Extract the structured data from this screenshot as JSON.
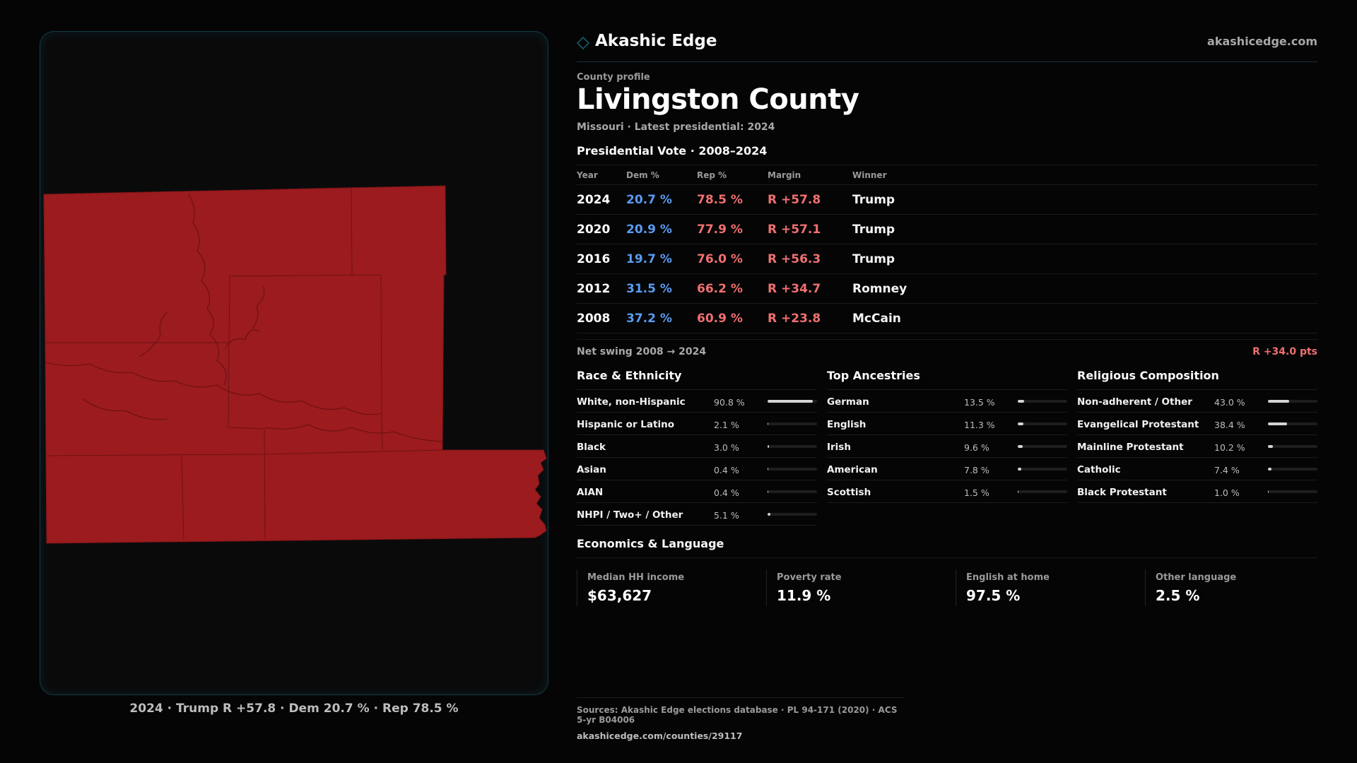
{
  "brand": {
    "name": "Akashic Edge",
    "url": "akashicedge.com",
    "icon": "diamond-logo-icon",
    "accent": "#1a5a6a"
  },
  "map": {
    "fill_color": "#9b1b1e",
    "caption": "2024 · Trump R +57.8 · Dem 20.7 % · Rep 78.5 %"
  },
  "profile": {
    "eyebrow": "County profile",
    "title": "Livingston County",
    "subtitle": "Missouri · Latest presidential: 2024"
  },
  "presidential": {
    "title": "Presidential Vote · 2008–2024",
    "headers": [
      "Year",
      "Dem %",
      "Rep %",
      "Margin",
      "Winner"
    ],
    "rows": [
      {
        "year": "2024",
        "dem": "20.7 %",
        "rep": "78.5 %",
        "margin": "R +57.8",
        "winner": "Trump"
      },
      {
        "year": "2020",
        "dem": "20.9 %",
        "rep": "77.9 %",
        "margin": "R +57.1",
        "winner": "Trump"
      },
      {
        "year": "2016",
        "dem": "19.7 %",
        "rep": "76.0 %",
        "margin": "R +56.3",
        "winner": "Trump"
      },
      {
        "year": "2012",
        "dem": "31.5 %",
        "rep": "66.2 %",
        "margin": "R +34.7",
        "winner": "Romney"
      },
      {
        "year": "2008",
        "dem": "37.2 %",
        "rep": "60.9 %",
        "margin": "R +23.8",
        "winner": "McCain"
      }
    ],
    "dem_color": "#5b9bf0",
    "rep_color": "#f07070"
  },
  "swing": {
    "label": "Net swing 2008 → 2024",
    "value": "R +34.0 pts"
  },
  "race": {
    "title": "Race & Ethnicity",
    "items": [
      {
        "label": "White, non-Hispanic",
        "value": "90.8 %",
        "pct": 90.8
      },
      {
        "label": "Hispanic or Latino",
        "value": "2.1 %",
        "pct": 2.1
      },
      {
        "label": "Black",
        "value": "3.0 %",
        "pct": 3.0
      },
      {
        "label": "Asian",
        "value": "0.4 %",
        "pct": 0.4
      },
      {
        "label": "AIAN",
        "value": "0.4 %",
        "pct": 0.4
      },
      {
        "label": "NHPI / Two+ / Other",
        "value": "5.1 %",
        "pct": 5.1
      }
    ]
  },
  "ancestry": {
    "title": "Top Ancestries",
    "items": [
      {
        "label": "German",
        "value": "13.5 %",
        "pct": 13.5
      },
      {
        "label": "English",
        "value": "11.3 %",
        "pct": 11.3
      },
      {
        "label": "Irish",
        "value": "9.6 %",
        "pct": 9.6
      },
      {
        "label": "American",
        "value": "7.8 %",
        "pct": 7.8
      },
      {
        "label": "Scottish",
        "value": "1.5 %",
        "pct": 1.5
      }
    ]
  },
  "religion": {
    "title": "Religious Composition",
    "items": [
      {
        "label": "Non-adherent / Other",
        "value": "43.0 %",
        "pct": 43.0
      },
      {
        "label": "Evangelical Protestant",
        "value": "38.4 %",
        "pct": 38.4
      },
      {
        "label": "Mainline Protestant",
        "value": "10.2 %",
        "pct": 10.2
      },
      {
        "label": "Catholic",
        "value": "7.4 %",
        "pct": 7.4
      },
      {
        "label": "Black Protestant",
        "value": "1.0 %",
        "pct": 1.0
      }
    ]
  },
  "economics": {
    "title": "Economics & Language",
    "items": [
      {
        "label": "Median HH income",
        "value": "$63,627"
      },
      {
        "label": "Poverty rate",
        "value": "11.9 %"
      },
      {
        "label": "English at home",
        "value": "97.5 %"
      },
      {
        "label": "Other language",
        "value": "2.5 %"
      }
    ]
  },
  "sources": {
    "text": "Sources: Akashic Edge elections database · PL 94-171 (2020) · ACS 5-yr B04006",
    "url": "akashicedge.com/counties/29117"
  }
}
